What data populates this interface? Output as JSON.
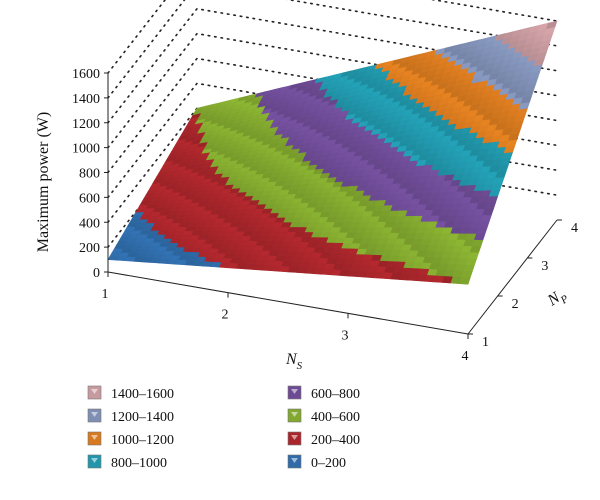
{
  "chart_data": {
    "type": "surface",
    "zlabel": "Maximum power (W)",
    "xlabel": "N",
    "xlabel_sub": "S",
    "ylabel": "N",
    "ylabel_sub": "P",
    "x_ticks": [
      "1",
      "2",
      "3",
      "4"
    ],
    "y_ticks": [
      "1",
      "2",
      "3",
      "4"
    ],
    "z_ticks": [
      "0",
      "200",
      "400",
      "600",
      "800",
      "1000",
      "1200",
      "1400",
      "1600"
    ],
    "zlim": [
      0,
      1600
    ],
    "grid": "dotted",
    "x": [
      1,
      2,
      3,
      4
    ],
    "y": [
      1,
      2,
      3,
      4
    ],
    "z": [
      [
        100,
        200,
        300,
        400
      ],
      [
        200,
        400,
        600,
        800
      ],
      [
        300,
        600,
        900,
        1200
      ],
      [
        400,
        800,
        1200,
        1600
      ]
    ],
    "legend": [
      {
        "label": "1400–1600",
        "color": "#c79a9f"
      },
      {
        "label": "1200–1400",
        "color": "#7f8fb4"
      },
      {
        "label": "1000–1200",
        "color": "#d6791f"
      },
      {
        "label": "800–1000",
        "color": "#2196aa"
      },
      {
        "label": "600–800",
        "color": "#6d4b94"
      },
      {
        "label": "400–600",
        "color": "#82a82f"
      },
      {
        "label": "200–400",
        "color": "#a8262b"
      },
      {
        "label": "0–200",
        "color": "#2f6ba8"
      }
    ]
  }
}
